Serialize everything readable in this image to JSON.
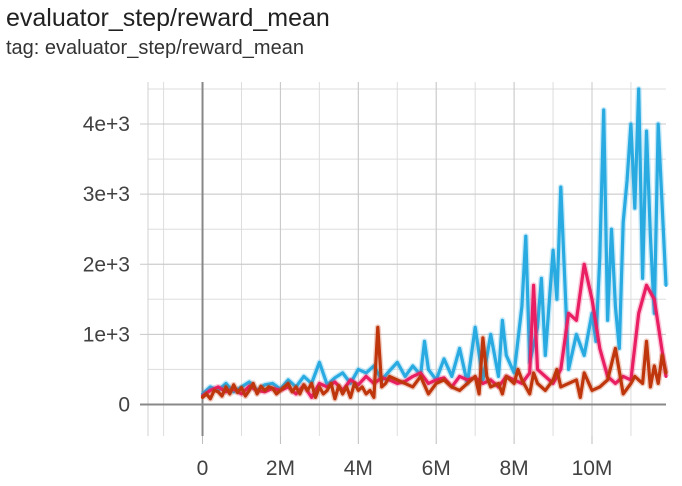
{
  "header": {
    "title": "evaluator_step/reward_mean",
    "subtitle": "tag: evaluator_step/reward_mean"
  },
  "chart_data": {
    "type": "line",
    "title": "evaluator_step/reward_mean",
    "xlabel": "",
    "ylabel": "",
    "xlim": [
      -1400000,
      11900000
    ],
    "ylim": [
      -450,
      4600
    ],
    "x_ticks": [
      "0",
      "2M",
      "4M",
      "6M",
      "8M",
      "10M"
    ],
    "x_tick_values": [
      0,
      2000000,
      4000000,
      6000000,
      8000000,
      10000000
    ],
    "y_ticks": [
      "0",
      "1e+3",
      "2e+3",
      "3e+3",
      "4e+3"
    ],
    "y_tick_values": [
      0,
      1000,
      2000,
      3000,
      4000
    ],
    "grid": true,
    "legend": "none",
    "series": [
      {
        "color": "#29abe2",
        "x": [
          0,
          200000,
          400000,
          600000,
          800000,
          1000000,
          1200000,
          1400000,
          1600000,
          1800000,
          2000000,
          2200000,
          2400000,
          2600000,
          2800000,
          3000000,
          3200000,
          3400000,
          3600000,
          3800000,
          4000000,
          4200000,
          4400000,
          4600000,
          4800000,
          5000000,
          5200000,
          5400000,
          5600000,
          5700000,
          5800000,
          6000000,
          6200000,
          6400000,
          6600000,
          6800000,
          7000000,
          7200000,
          7400000,
          7600000,
          7700000,
          7800000,
          8000000,
          8200000,
          8300000,
          8400000,
          8600000,
          8700000,
          8800000,
          9000000,
          9100000,
          9200000,
          9400000,
          9600000,
          9800000,
          10000000,
          10100000,
          10200000,
          10300000,
          10400000,
          10500000,
          10600000,
          10700000,
          10800000,
          10900000,
          11000000,
          11100000,
          11200000,
          11300000,
          11400000,
          11500000,
          11600000,
          11700000,
          11900000
        ],
        "y": [
          150,
          250,
          200,
          300,
          180,
          250,
          320,
          200,
          280,
          300,
          220,
          350,
          250,
          400,
          300,
          600,
          280,
          380,
          450,
          300,
          500,
          450,
          550,
          350,
          480,
          600,
          400,
          550,
          420,
          900,
          500,
          350,
          650,
          400,
          800,
          300,
          1100,
          350,
          1000,
          400,
          1200,
          700,
          450,
          1400,
          2400,
          600,
          1100,
          1800,
          700,
          2200,
          1500,
          3100,
          500,
          1000,
          700,
          1300,
          900,
          2100,
          4200,
          1200,
          2500,
          1400,
          800,
          2600,
          3200,
          4000,
          2800,
          4500,
          1800,
          3900,
          2400,
          1300,
          4000,
          1700
        ]
      },
      {
        "color": "#e91e63",
        "x": [
          0,
          200000,
          400000,
          600000,
          800000,
          1000000,
          1200000,
          1400000,
          1600000,
          1800000,
          2000000,
          2200000,
          2400000,
          2600000,
          2800000,
          3000000,
          3200000,
          3400000,
          3600000,
          3800000,
          4000000,
          4200000,
          4400000,
          4600000,
          4800000,
          5000000,
          5200000,
          5400000,
          5600000,
          5800000,
          6000000,
          6200000,
          6400000,
          6600000,
          6800000,
          7000000,
          7200000,
          7400000,
          7600000,
          7800000,
          8000000,
          8200000,
          8400000,
          8500000,
          8600000,
          8800000,
          9000000,
          9200000,
          9400000,
          9600000,
          9800000,
          10000000,
          10200000,
          10400000,
          10500000,
          10600000,
          10800000,
          11000000,
          11200000,
          11400000,
          11600000,
          11900000
        ],
        "y": [
          120,
          200,
          250,
          180,
          220,
          150,
          260,
          200,
          180,
          230,
          200,
          250,
          150,
          270,
          100,
          300,
          250,
          320,
          200,
          350,
          280,
          400,
          300,
          380,
          350,
          300,
          330,
          400,
          450,
          300,
          350,
          380,
          250,
          400,
          350,
          380,
          300,
          350,
          250,
          400,
          350,
          300,
          450,
          1700,
          500,
          400,
          300,
          500,
          1300,
          1200,
          2000,
          1500,
          800,
          400,
          350,
          300,
          400,
          350,
          1300,
          1700,
          1500,
          400
        ]
      },
      {
        "color": "#bf360c",
        "x": [
          0,
          100000,
          200000,
          300000,
          400000,
          500000,
          600000,
          700000,
          800000,
          900000,
          1000000,
          1100000,
          1200000,
          1300000,
          1400000,
          1500000,
          1600000,
          1700000,
          1800000,
          1900000,
          2000000,
          2100000,
          2200000,
          2300000,
          2400000,
          2500000,
          2600000,
          2700000,
          2800000,
          2900000,
          3000000,
          3100000,
          3200000,
          3300000,
          3400000,
          3500000,
          3600000,
          3700000,
          3800000,
          3900000,
          4000000,
          4100000,
          4200000,
          4300000,
          4400000,
          4500000,
          4600000,
          4700000,
          4800000,
          5000000,
          5200000,
          5400000,
          5600000,
          5800000,
          6000000,
          6200000,
          6400000,
          6600000,
          6800000,
          7000000,
          7100000,
          7200000,
          7300000,
          7400000,
          7600000,
          7700000,
          7800000,
          8000000,
          8100000,
          8200000,
          8400000,
          8500000,
          8600000,
          8800000,
          9000000,
          9100000,
          9200000,
          9400000,
          9600000,
          9700000,
          9800000,
          10000000,
          10200000,
          10400000,
          10600000,
          10800000,
          11000000,
          11100000,
          11200000,
          11300000,
          11400000,
          11500000,
          11600000,
          11700000,
          11800000,
          11900000
        ],
        "y": [
          100,
          150,
          80,
          200,
          180,
          120,
          250,
          150,
          280,
          170,
          240,
          120,
          200,
          300,
          150,
          260,
          200,
          250,
          230,
          150,
          200,
          250,
          300,
          180,
          250,
          150,
          280,
          200,
          300,
          100,
          250,
          150,
          200,
          300,
          80,
          270,
          150,
          250,
          100,
          300,
          200,
          250,
          150,
          200,
          100,
          1100,
          250,
          300,
          400,
          350,
          300,
          250,
          400,
          150,
          300,
          350,
          250,
          200,
          300,
          400,
          150,
          950,
          400,
          250,
          300,
          150,
          400,
          300,
          500,
          350,
          150,
          450,
          300,
          200,
          350,
          500,
          250,
          300,
          350,
          100,
          450,
          200,
          250,
          350,
          800,
          150,
          300,
          400,
          350,
          300,
          900,
          250,
          550,
          300,
          700,
          450
        ]
      }
    ]
  }
}
